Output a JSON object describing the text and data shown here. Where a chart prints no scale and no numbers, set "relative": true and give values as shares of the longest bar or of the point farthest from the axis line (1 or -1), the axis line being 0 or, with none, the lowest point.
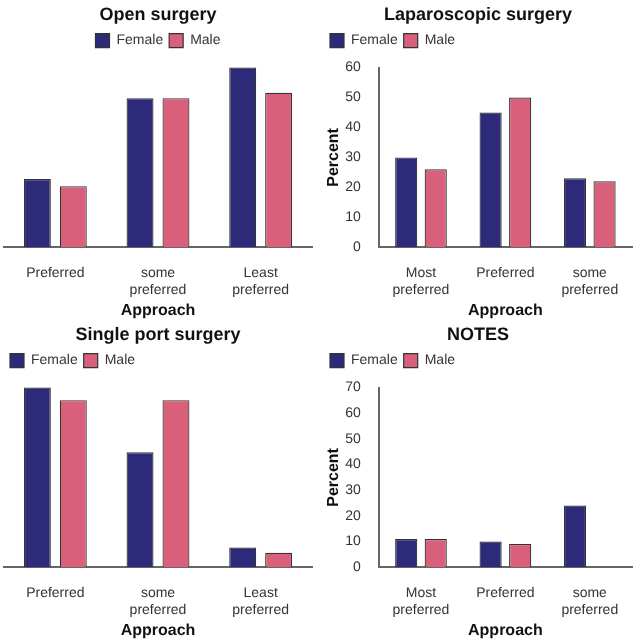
{
  "chart_data": [
    {
      "type": "bar",
      "title": "Open surgery",
      "xlabel": "Approach",
      "categories": [
        "Preferred",
        "some preferred",
        "Least preferred"
      ],
      "relative": true,
      "legend": "top",
      "grid": false,
      "series": [
        {
          "name": "Female",
          "color": "#2e2a7a",
          "values": [
            0.38,
            0.83,
            1
          ]
        },
        {
          "name": "Male",
          "color": "#d9607a",
          "values": [
            0.34,
            0.83,
            0.86
          ]
        }
      ]
    },
    {
      "type": "bar",
      "title": "Laparoscopic surgery",
      "xlabel": "Approach",
      "ylabel": "Percent",
      "categories": [
        "Most preferred",
        "Preferred",
        "some preferred"
      ],
      "ylim": [
        0,
        60
      ],
      "yticks": [
        0,
        10,
        20,
        30,
        40,
        50,
        60
      ],
      "legend": "top left",
      "grid": false,
      "series": [
        {
          "name": "Female",
          "color": "#2e2a7a",
          "values": [
            30,
            45,
            23
          ]
        },
        {
          "name": "Male",
          "color": "#d9607a",
          "values": [
            26,
            50,
            22
          ]
        }
      ]
    },
    {
      "type": "bar",
      "title": "Single port surgery",
      "xlabel": "Approach",
      "categories": [
        "Preferred",
        "some preferred",
        "Least preferred"
      ],
      "relative": true,
      "legend": "top left",
      "grid": false,
      "series": [
        {
          "name": "Female",
          "color": "#2e2a7a",
          "values": [
            1,
            0.64,
            0.11
          ]
        },
        {
          "name": "Male",
          "color": "#d9607a",
          "values": [
            0.93,
            0.93,
            0.08
          ]
        }
      ]
    },
    {
      "type": "bar",
      "title": "NOTES",
      "xlabel": "Approach",
      "ylabel": "Percent",
      "categories": [
        "Most preferred",
        "Preferred",
        "some preferred"
      ],
      "ylim": [
        0,
        70
      ],
      "yticks": [
        0,
        10,
        20,
        30,
        40,
        50,
        60,
        70
      ],
      "legend": "top left",
      "grid": false,
      "series": [
        {
          "name": "Female",
          "color": "#2e2a7a",
          "values": [
            11,
            10,
            24
          ]
        },
        {
          "name": "Male",
          "color": "#d9607a",
          "values": [
            11,
            9,
            null
          ]
        }
      ]
    }
  ]
}
